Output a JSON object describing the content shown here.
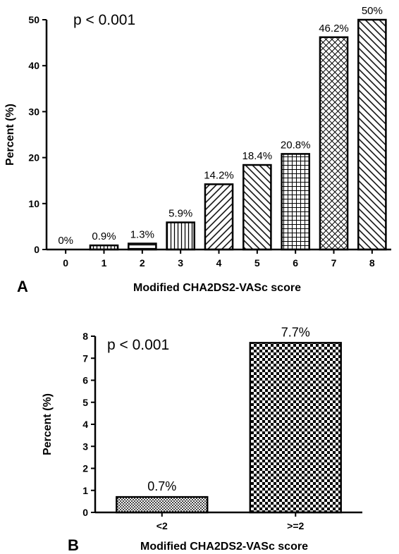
{
  "chart_data": [
    {
      "type": "bar",
      "panel": "A",
      "annotation": "p < 0.001",
      "xlabel": "Modified CHA2DS2-VASc score",
      "ylabel": "Percent (%)",
      "ylim": [
        0,
        50
      ],
      "yticks": [
        "0",
        "10",
        "20",
        "30",
        "40",
        "50"
      ],
      "categories": [
        "0",
        "1",
        "2",
        "3",
        "4",
        "5",
        "6",
        "7",
        "8"
      ],
      "values": [
        0,
        0.9,
        1.3,
        5.9,
        14.2,
        18.4,
        20.8,
        46.2,
        50
      ],
      "data_labels": [
        "0%",
        "0.9%",
        "1.3%",
        "5.9%",
        "14.2%",
        "18.4%",
        "20.8%",
        "46.2%",
        "50%"
      ],
      "patterns": [
        "none",
        "vertical",
        "horizontal",
        "vertical",
        "diagonal-up",
        "diagonal-down",
        "grid",
        "crosshatch",
        "diagonal-down"
      ],
      "grid": false
    },
    {
      "type": "bar",
      "panel": "B",
      "annotation": "p < 0.001",
      "xlabel": "Modified CHA2DS2-VASc score",
      "ylabel": "Percent (%)",
      "ylim": [
        0,
        8
      ],
      "yticks": [
        "0",
        "1",
        "2",
        "3",
        "4",
        "5",
        "6",
        "7",
        "8"
      ],
      "categories": [
        "<2",
        ">=2"
      ],
      "values": [
        0.7,
        7.7
      ],
      "data_labels": [
        "0.7%",
        "7.7%"
      ],
      "patterns": [
        "fine-check",
        "checker"
      ],
      "grid": false
    }
  ]
}
